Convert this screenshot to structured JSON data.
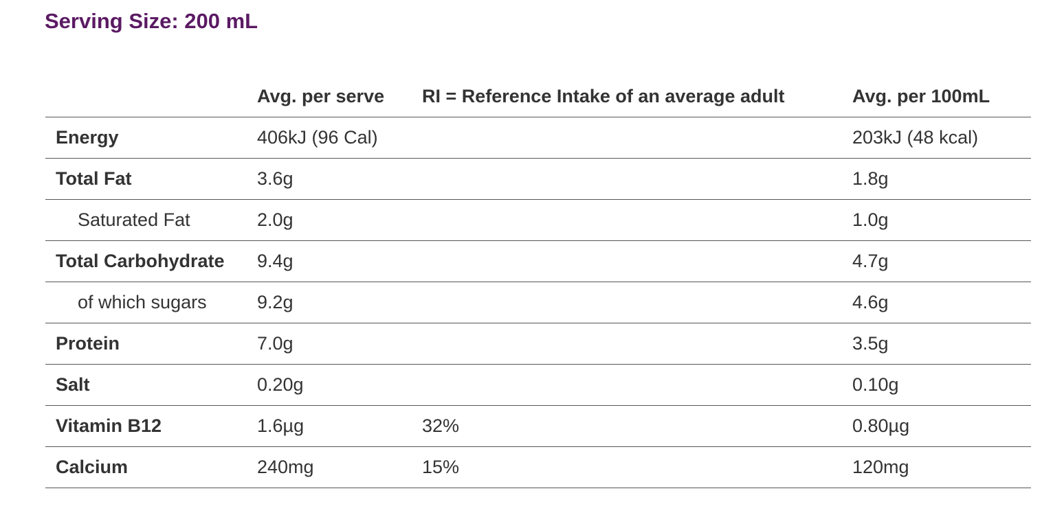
{
  "title": "Serving Size: 200 mL",
  "headers": {
    "nutrient": "",
    "per_serve": "Avg. per serve",
    "ri": "RI = Reference Intake of an average adult",
    "per_100ml": "Avg. per 100mL"
  },
  "rows": [
    {
      "name": "Energy",
      "per_serve": "406kJ (96 Cal)",
      "ri": "",
      "per_100ml": "203kJ (48 kcal)"
    },
    {
      "name": "Total Fat",
      "per_serve": "3.6g",
      "ri": "",
      "per_100ml": "1.8g"
    },
    {
      "name": "Saturated Fat",
      "per_serve": "2.0g",
      "ri": "",
      "per_100ml": "1.0g"
    },
    {
      "name": "Total Carbohydrate",
      "per_serve": "9.4g",
      "ri": "",
      "per_100ml": "4.7g"
    },
    {
      "name": "of which sugars",
      "per_serve": "9.2g",
      "ri": "",
      "per_100ml": "4.6g"
    },
    {
      "name": "Protein",
      "per_serve": "7.0g",
      "ri": "",
      "per_100ml": "3.5g"
    },
    {
      "name": "Salt",
      "per_serve": "0.20g",
      "ri": "",
      "per_100ml": "0.10g"
    },
    {
      "name": "Vitamin B12",
      "per_serve": "1.6µg",
      "ri": "32%",
      "per_100ml": "0.80µg"
    },
    {
      "name": "Calcium",
      "per_serve": "240mg",
      "ri": "15%",
      "per_100ml": "120mg"
    }
  ],
  "colors": {
    "title": "#5b1a63",
    "text": "#333333",
    "rule": "#555555"
  }
}
